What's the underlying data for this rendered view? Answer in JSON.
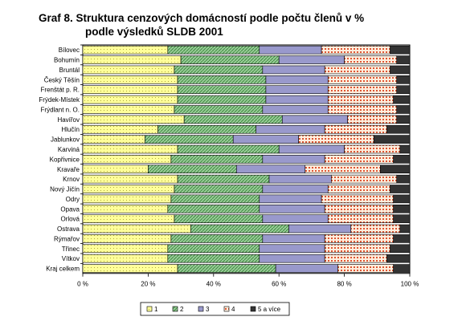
{
  "chart_data": {
    "type": "bar",
    "orientation": "horizontal",
    "stacked": "percent",
    "title_line1": "Graf 8. Struktura cenzových domácností podle počtu členů v %",
    "title_line2": "podle výsledků SLDB 2001",
    "categories": [
      "Bílovec",
      "Bohumín",
      "Bruntál",
      "Český Těšín",
      "Frenštát p. R.",
      "Frýdek-Místek",
      "Frýdlant n. O.",
      "Havířov",
      "Hlučín",
      "Jablunkov",
      "Karviná",
      "Kopřivnice",
      "Kravaře",
      "Krnov",
      "Nový Jičín",
      "Odry",
      "Opava",
      "Orlová",
      "Ostrava",
      "Rýmařov",
      "Třinec",
      "Vítkov",
      "Kraj celkem"
    ],
    "series": [
      {
        "name": "1",
        "color": "#ffff99",
        "pattern": "dots",
        "values": [
          26,
          30,
          28,
          29,
          29,
          29,
          28,
          31,
          23,
          19,
          29,
          27,
          20,
          29,
          28,
          27,
          26,
          28,
          33,
          27,
          26,
          26,
          29
        ]
      },
      {
        "name": "2",
        "color": "#99cc99",
        "pattern": "diagonal",
        "values": [
          28,
          30,
          27,
          27,
          27,
          27,
          27,
          30,
          30,
          27,
          31,
          28,
          27,
          28,
          27,
          27,
          28,
          27,
          30,
          28,
          28,
          28,
          30
        ]
      },
      {
        "name": "3",
        "color": "#9999cc",
        "pattern": "solid",
        "values": [
          19,
          20,
          19,
          19,
          19,
          19,
          20,
          20,
          21,
          20,
          20,
          19,
          21,
          19,
          20,
          19,
          20,
          20,
          19,
          19,
          20,
          20,
          19
        ]
      },
      {
        "name": "4",
        "color": "#ff9966",
        "pattern": "dots",
        "values": [
          21,
          16,
          20,
          21,
          21,
          20,
          21,
          15,
          19,
          23,
          17,
          21,
          23,
          20,
          19,
          22,
          21,
          20,
          15,
          21,
          20,
          19,
          17
        ]
      },
      {
        "name": "5 a více",
        "color": "#333333",
        "pattern": "solid",
        "values": [
          6,
          4,
          6,
          4,
          4,
          5,
          4,
          4,
          7,
          11,
          3,
          5,
          9,
          4,
          6,
          5,
          5,
          5,
          3,
          5,
          6,
          7,
          5
        ]
      }
    ],
    "xticks": [
      "0 %",
      "20 %",
      "40 %",
      "60 %",
      "80 %",
      "100 %"
    ],
    "xlim": [
      0,
      100
    ],
    "legend_position": "bottom",
    "grid": false
  }
}
